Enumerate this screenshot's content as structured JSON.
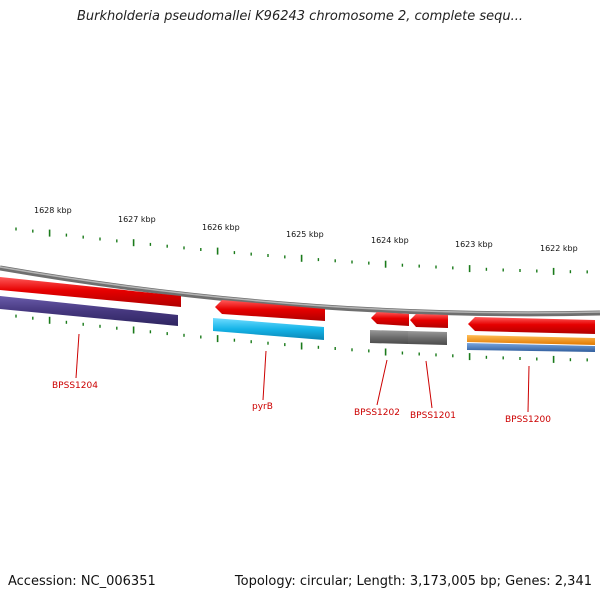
{
  "title": "Burkholderia pseudomallei K96243 chromosome 2, complete sequ...",
  "scale_labels": [
    "1628 kbp",
    "1627 kbp",
    "1626 kbp",
    "1625 kbp",
    "1624 kbp",
    "1623 kbp",
    "1622 kbp"
  ],
  "genes": [
    "BPSS1204",
    "pyrB",
    "BPSS1202",
    "BPSS1201",
    "BPSS1200"
  ],
  "footer": {
    "accession": "Accession: NC_006351",
    "topology": "Topology: circular; Length: 3,173,005 bp; Genes: 2,341"
  },
  "colors": {
    "backbone": "#8c8c8c",
    "tick": "#1a7a1a",
    "gene_label": "#cc0000",
    "feature_red": "#e30000",
    "feature_navy": "#46387f",
    "feature_cyan": "#16b4e8",
    "feature_gray": "#6e6e6e",
    "feature_orange": "#f08a00",
    "feature_blue": "#3a6fb3"
  }
}
